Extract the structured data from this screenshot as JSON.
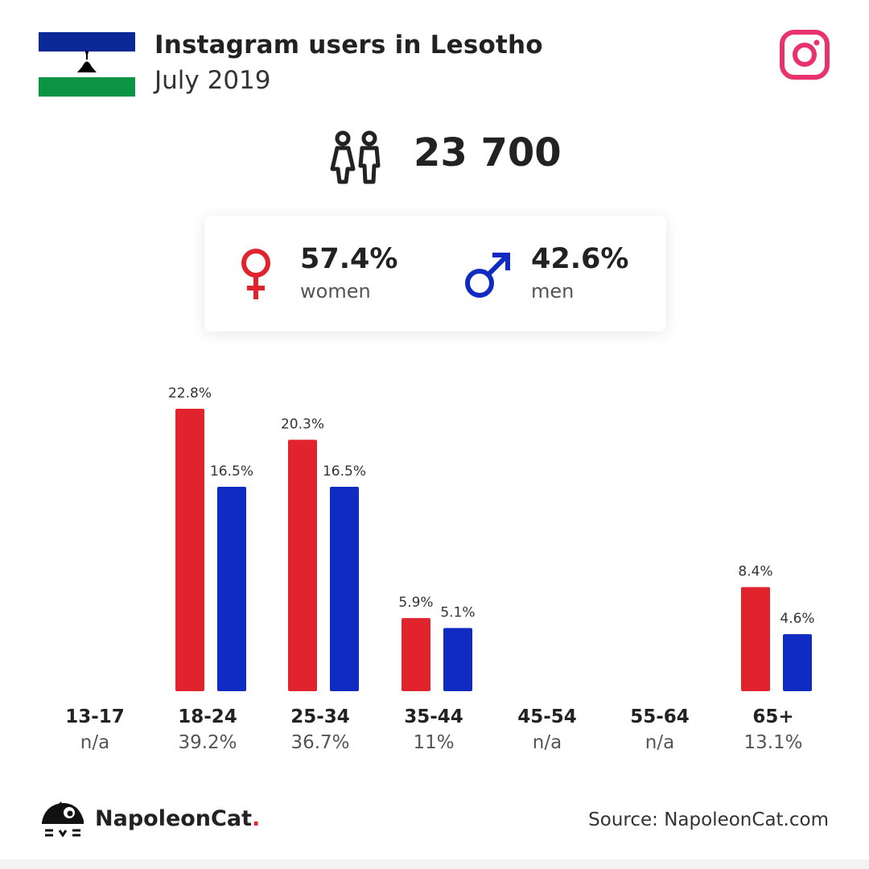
{
  "header": {
    "title": "Instagram users in Lesotho",
    "subtitle": "July 2019"
  },
  "colors": {
    "women": "#e0232c",
    "men": "#0f2bc2",
    "instagram": "#e8336d",
    "flag_blue": "#0a2896",
    "flag_green": "#0b9444"
  },
  "total_users": "23 700",
  "gender": {
    "women_pct": "57.4%",
    "women_label": "women",
    "men_pct": "42.6%",
    "men_label": "men"
  },
  "chart_data": {
    "type": "bar",
    "categories": [
      "13-17",
      "18-24",
      "25-34",
      "35-44",
      "45-54",
      "55-64",
      "65+"
    ],
    "category_totals": [
      "n/a",
      "39.2%",
      "36.7%",
      "11%",
      "n/a",
      "n/a",
      "13.1%"
    ],
    "series": [
      {
        "name": "women",
        "values": [
          null,
          22.8,
          20.3,
          5.9,
          null,
          null,
          8.4
        ],
        "labels": [
          "",
          "22.8%",
          "20.3%",
          "5.9%",
          "",
          "",
          "8.4%"
        ]
      },
      {
        "name": "men",
        "values": [
          null,
          16.5,
          16.5,
          5.1,
          null,
          null,
          4.6
        ],
        "labels": [
          "",
          "16.5%",
          "16.5%",
          "5.1%",
          "",
          "",
          "4.6%"
        ]
      }
    ],
    "ylim": [
      0,
      22.8
    ],
    "grid": false
  },
  "footer": {
    "brand": "NapoleonCat",
    "brand_dot": ".",
    "source": "Source: NapoleonCat.com"
  }
}
